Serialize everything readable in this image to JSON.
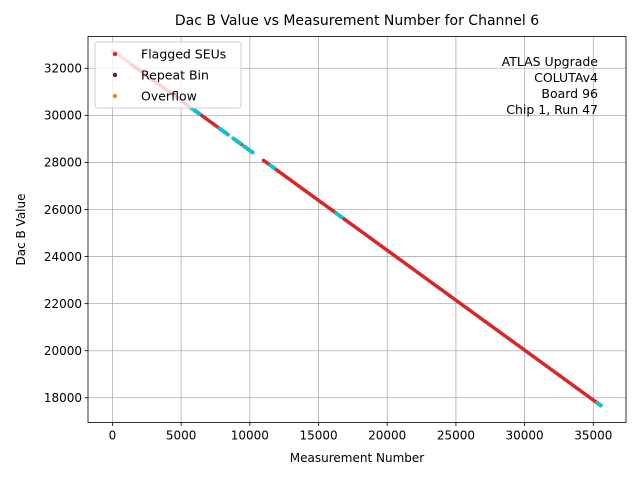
{
  "chart_data": {
    "type": "scatter",
    "title": "Dac B Value vs Measurement Number for Channel 6",
    "xlabel": "Measurement Number",
    "ylabel": "Dac B Value",
    "xlim": [
      -1780,
      37380
    ],
    "ylim": [
      16950,
      33350
    ],
    "xticks": [
      0,
      5000,
      10000,
      15000,
      20000,
      25000,
      30000,
      35000
    ],
    "yticks": [
      18000,
      20000,
      22000,
      24000,
      26000,
      28000,
      30000,
      32000
    ],
    "grid": true,
    "legend_position": "top-left",
    "legend": [
      {
        "label": "Flagged SEUs",
        "color": "#d62728"
      },
      {
        "label": "Repeat Bin",
        "color": "#7f0f4f"
      },
      {
        "label": "Overflow",
        "color": "#ff7f0e"
      }
    ],
    "annotation": [
      "ATLAS Upgrade",
      "COLUTAv4",
      "Board 96",
      "Chip 1, Run 47"
    ],
    "series": [
      {
        "color": "#d62728",
        "line": {
          "x": [
            0,
            35600
          ],
          "y": [
            32750,
            17650
          ]
        },
        "segment_x": [
          [
            1200,
            5800
          ],
          [
            6000,
            8000
          ],
          [
            9400,
            9500
          ],
          [
            11000,
            16300
          ],
          [
            16700,
            35600
          ]
        ]
      },
      {
        "color": "#17becf",
        "segment_x": [
          [
            5700,
            6400
          ],
          [
            7800,
            8500
          ],
          [
            8800,
            9300
          ],
          [
            9600,
            10300
          ],
          [
            11500,
            11800
          ],
          [
            16300,
            16700
          ],
          [
            35300,
            35600
          ]
        ]
      },
      {
        "color": "#ff6b6b",
        "segment_x": [
          [
            0,
            1200
          ]
        ]
      }
    ]
  }
}
